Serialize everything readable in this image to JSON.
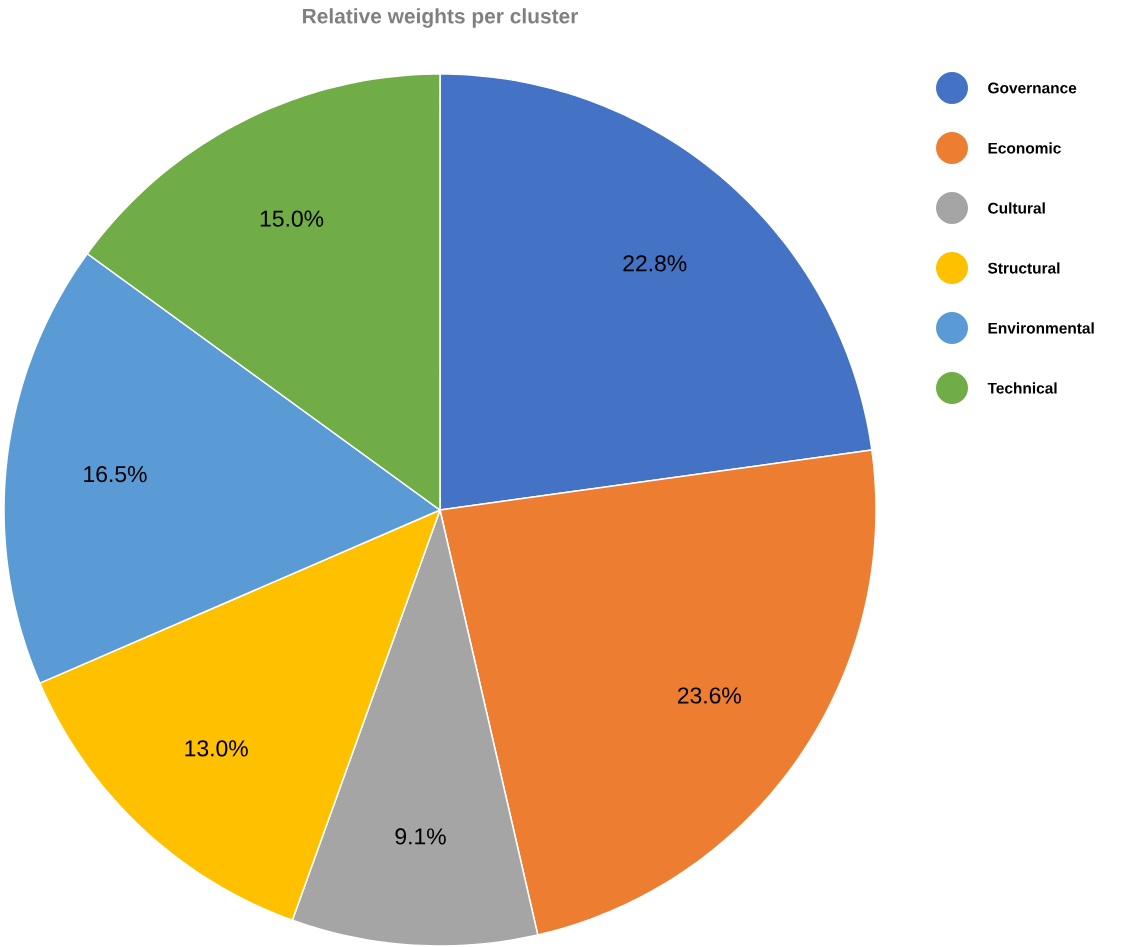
{
  "chart_data": {
    "type": "pie",
    "title": "Relative weights per cluster",
    "categories": [
      "Governance",
      "Economic",
      "Cultural",
      "Structural",
      "Environmental",
      "Technical"
    ],
    "values": [
      22.8,
      23.6,
      9.1,
      13.0,
      16.5,
      15.0
    ],
    "colors": [
      "#4472c4",
      "#ed7d31",
      "#a5a5a5",
      "#ffc000",
      "#5b9bd5",
      "#70ad47"
    ],
    "value_labels": [
      "22.8%",
      "23.6%",
      "9.1%",
      "13.0%",
      "16.5%",
      "15.0%"
    ],
    "legend": "right"
  }
}
